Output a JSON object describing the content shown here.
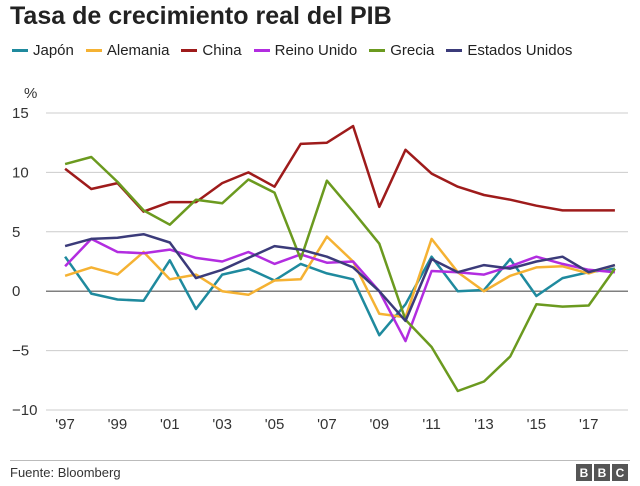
{
  "title": "Tasa de crecimiento real del PIB",
  "source": "Fuente: Bloomberg",
  "logo": {
    "letters": [
      "B",
      "B",
      "C"
    ]
  },
  "chart_data": {
    "type": "line",
    "unit_label": "%",
    "ylim": [
      -10,
      15
    ],
    "yticks": [
      15,
      10,
      5,
      0,
      -5,
      -10
    ],
    "ytick_labels": [
      "15",
      "10",
      "5",
      "0",
      "−5",
      "−10"
    ],
    "xlim": [
      1996.5,
      2018.5
    ],
    "xtick_labels": [
      "'97",
      "'99",
      "'01",
      "'03",
      "'05",
      "'07",
      "'09",
      "'11",
      "'13",
      "'15",
      "'17"
    ],
    "xticks": [
      1997,
      1999,
      2001,
      2003,
      2005,
      2007,
      2009,
      2011,
      2013,
      2015,
      2017
    ],
    "grid": true,
    "legend_position": "top",
    "x": [
      1997,
      1998,
      1999,
      2000,
      2001,
      2002,
      2003,
      2004,
      2005,
      2006,
      2007,
      2008,
      2009,
      2010,
      2011,
      2012,
      2013,
      2014,
      2015,
      2016,
      2017,
      2018
    ],
    "series": [
      {
        "name": "Japón",
        "color": "#1f8a9e",
        "values": [
          2.9,
          -0.2,
          -0.7,
          -0.8,
          2.6,
          -1.5,
          1.4,
          1.9,
          0.9,
          2.3,
          1.5,
          1.0,
          -3.7,
          -1.1,
          2.9,
          0.0,
          0.1,
          2.7,
          -0.4,
          1.1,
          1.6,
          1.9
        ]
      },
      {
        "name": "Alemania",
        "color": "#f5b233",
        "values": [
          1.3,
          2.0,
          1.4,
          3.3,
          1.0,
          1.4,
          0.0,
          -0.3,
          0.9,
          1.0,
          4.6,
          2.5,
          -1.9,
          -2.2,
          4.4,
          1.6,
          0.0,
          1.3,
          2.0,
          2.1,
          1.5,
          2.2
        ]
      },
      {
        "name": "China",
        "color": "#9e1b1b",
        "values": [
          10.3,
          8.6,
          9.1,
          6.7,
          7.5,
          7.5,
          9.1,
          10.0,
          8.8,
          12.4,
          12.5,
          13.9,
          7.1,
          11.9,
          9.9,
          8.8,
          8.1,
          7.7,
          7.2,
          6.8,
          6.8,
          6.8
        ]
      },
      {
        "name": "Reino Unido",
        "color": "#b22de0",
        "values": [
          2.1,
          4.4,
          3.3,
          3.2,
          3.5,
          2.8,
          2.5,
          3.3,
          2.3,
          3.1,
          2.4,
          2.5,
          0.0,
          -4.2,
          1.7,
          1.6,
          1.4,
          2.1,
          2.9,
          2.3,
          1.8,
          1.6
        ]
      },
      {
        "name": "Grecia",
        "color": "#6b9a1f",
        "values": [
          10.7,
          11.3,
          9.2,
          6.8,
          5.6,
          7.7,
          7.4,
          9.4,
          8.3,
          2.7,
          9.3,
          6.7,
          4.0,
          -2.4,
          -4.7,
          -8.4,
          -7.6,
          -5.5,
          -1.1,
          -1.3,
          -1.2,
          1.9
        ]
      },
      {
        "name": "Estados Unidos",
        "color": "#3b3b7a",
        "values": [
          3.8,
          4.4,
          4.5,
          4.8,
          4.1,
          1.1,
          1.8,
          2.8,
          3.8,
          3.5,
          2.9,
          2.0,
          0.0,
          -2.5,
          2.7,
          1.6,
          2.2,
          1.9,
          2.5,
          2.9,
          1.6,
          2.2
        ]
      }
    ]
  }
}
